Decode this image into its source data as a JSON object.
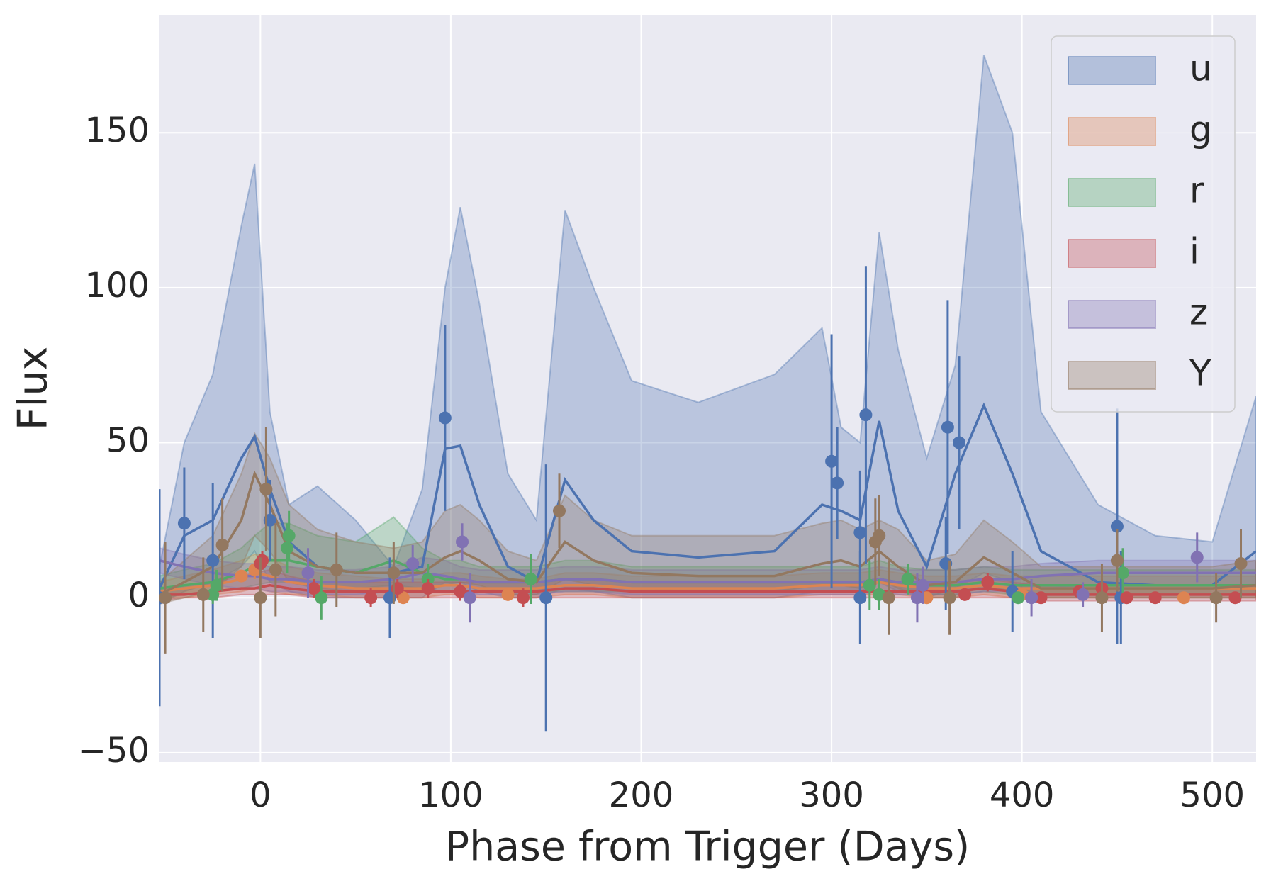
{
  "chart_data": {
    "type": "line",
    "xlabel": "Phase from Trigger (Days)",
    "ylabel": "Flux",
    "xlim": [
      -53,
      523
    ],
    "ylim": [
      -53,
      188
    ],
    "xticks": [
      0,
      100,
      200,
      300,
      400,
      500
    ],
    "yticks": [
      {
        "value": -50,
        "label": "−50"
      },
      0,
      50,
      100,
      150
    ],
    "grid": true,
    "legend": "upper right",
    "x": [
      -53,
      -40,
      -25,
      -10,
      -3,
      5,
      15,
      30,
      50,
      70,
      85,
      97,
      105,
      115,
      130,
      145,
      160,
      175,
      195,
      230,
      270,
      295,
      305,
      315,
      325,
      335,
      350,
      365,
      380,
      395,
      410,
      440,
      470,
      500,
      523
    ],
    "series": [
      {
        "name": "u",
        "color": "#4c72b0",
        "values": [
          3,
          20,
          25,
          45,
          52,
          35,
          18,
          10,
          8,
          8,
          10,
          48,
          49,
          30,
          10,
          5,
          38,
          25,
          15,
          13,
          15,
          30,
          28,
          25,
          57,
          28,
          10,
          40,
          62,
          40,
          15,
          5,
          4,
          4,
          15
        ],
        "upper": [
          10,
          50,
          72,
          120,
          140,
          60,
          30,
          36,
          25,
          10,
          35,
          100,
          126,
          95,
          40,
          25,
          125,
          100,
          70,
          63,
          72,
          87,
          55,
          50,
          118,
          80,
          45,
          75,
          175,
          150,
          60,
          30,
          20,
          18,
          65
        ],
        "lower": [
          -2,
          2,
          5,
          10,
          15,
          5,
          2,
          0,
          0,
          0,
          0,
          5,
          5,
          2,
          0,
          0,
          3,
          2,
          0,
          0,
          0,
          2,
          2,
          2,
          5,
          2,
          0,
          3,
          8,
          5,
          0,
          0,
          0,
          0,
          0
        ],
        "points": {
          "x": [
            -53,
            -40,
            -25,
            5,
            68,
            97,
            150,
            300,
            303,
            315,
            315,
            318,
            360,
            361,
            367,
            395,
            450,
            452
          ],
          "y": [
            0,
            24,
            12,
            25,
            0,
            58,
            0,
            44,
            37,
            21,
            0,
            59,
            11,
            55,
            50,
            2,
            23,
            0
          ],
          "err": [
            35,
            18,
            25,
            13,
            13,
            30,
            43,
            41,
            18,
            20,
            15,
            48,
            15,
            41,
            28,
            13,
            38,
            15
          ]
        }
      },
      {
        "name": "g",
        "color": "#dd8452",
        "values": [
          2,
          3,
          4,
          6,
          8,
          7,
          5,
          4,
          3,
          3,
          3,
          4,
          4,
          3,
          3,
          3,
          4,
          4,
          3,
          3,
          3,
          4,
          4,
          4,
          5,
          4,
          3,
          3,
          4,
          3,
          3,
          3,
          3,
          3,
          3
        ],
        "upper": [
          5,
          7,
          9,
          12,
          14,
          13,
          10,
          8,
          7,
          6,
          6,
          8,
          8,
          7,
          6,
          6,
          8,
          8,
          7,
          7,
          7,
          8,
          8,
          8,
          9,
          8,
          7,
          7,
          8,
          7,
          7,
          7,
          7,
          7,
          7
        ],
        "lower": [
          0,
          0,
          1,
          2,
          3,
          2,
          1,
          1,
          0,
          0,
          0,
          1,
          1,
          0,
          0,
          0,
          1,
          1,
          0,
          0,
          0,
          1,
          1,
          1,
          1,
          1,
          0,
          0,
          1,
          0,
          0,
          0,
          0,
          0,
          0
        ],
        "points": {
          "x": [
            -10,
            -3,
            75,
            130,
            350,
            400,
            485
          ],
          "y": [
            7,
            9,
            0,
            1,
            0,
            1,
            0
          ],
          "err": [
            2,
            3,
            2,
            2,
            2,
            2,
            2
          ]
        }
      },
      {
        "name": "r",
        "color": "#55a868",
        "values": [
          3,
          4,
          5,
          8,
          10,
          12,
          12,
          10,
          8,
          12,
          8,
          6,
          6,
          5,
          5,
          5,
          6,
          6,
          5,
          5,
          5,
          5,
          5,
          5,
          6,
          5,
          4,
          4,
          5,
          4,
          4,
          4,
          4,
          4,
          4
        ],
        "upper": [
          7,
          9,
          11,
          16,
          20,
          24,
          24,
          20,
          18,
          26,
          16,
          12,
          12,
          10,
          10,
          10,
          12,
          12,
          10,
          10,
          10,
          10,
          10,
          10,
          12,
          10,
          9,
          9,
          10,
          9,
          9,
          9,
          9,
          9,
          9
        ],
        "lower": [
          0,
          1,
          2,
          3,
          4,
          5,
          5,
          4,
          3,
          4,
          3,
          2,
          2,
          2,
          2,
          2,
          2,
          2,
          2,
          2,
          2,
          2,
          2,
          2,
          2,
          2,
          1,
          1,
          2,
          1,
          1,
          1,
          1,
          1,
          1
        ],
        "points": {
          "x": [
            -25,
            -23,
            14,
            15,
            32,
            88,
            142,
            320,
            325,
            340,
            398,
            453
          ],
          "y": [
            1,
            4,
            16,
            20,
            0,
            6,
            6,
            4,
            1,
            6,
            0,
            8
          ],
          "err": [
            3,
            5,
            8,
            8,
            7,
            5,
            8,
            8,
            5,
            5,
            2,
            8
          ]
        }
      },
      {
        "name": "i",
        "color": "#c44e52",
        "values": [
          1,
          1,
          2,
          3,
          3,
          4,
          3,
          2,
          2,
          2,
          2,
          2,
          2,
          2,
          2,
          2,
          3,
          3,
          2,
          2,
          2,
          2,
          2,
          2,
          2,
          2,
          2,
          2,
          3,
          2,
          1,
          1,
          1,
          1,
          1
        ],
        "upper": [
          3,
          4,
          5,
          7,
          8,
          9,
          7,
          5,
          5,
          5,
          5,
          5,
          5,
          5,
          5,
          5,
          6,
          6,
          5,
          5,
          5,
          5,
          5,
          5,
          5,
          5,
          5,
          5,
          6,
          5,
          4,
          4,
          4,
          4,
          4
        ],
        "lower": [
          -1,
          0,
          0,
          1,
          1,
          1,
          1,
          0,
          0,
          0,
          0,
          0,
          0,
          0,
          0,
          0,
          0,
          0,
          0,
          0,
          0,
          0,
          0,
          0,
          0,
          0,
          0,
          0,
          0,
          0,
          -1,
          -1,
          -1,
          -1,
          -1
        ],
        "points": {
          "x": [
            0,
            1,
            28,
            58,
            72,
            88,
            105,
            138,
            370,
            382,
            410,
            430,
            442,
            455,
            470,
            512
          ],
          "y": [
            11,
            12,
            3,
            0,
            3,
            3,
            2,
            0,
            1,
            5,
            0,
            2,
            3,
            0,
            0,
            0
          ],
          "err": [
            3,
            3,
            3,
            3,
            3,
            3,
            3,
            3,
            2,
            3,
            2,
            2,
            3,
            2,
            2,
            2
          ]
        }
      },
      {
        "name": "z",
        "color": "#8172b3",
        "values": [
          12,
          10,
          8,
          7,
          7,
          6,
          6,
          5,
          5,
          6,
          8,
          7,
          6,
          5,
          5,
          5,
          6,
          6,
          5,
          5,
          5,
          5,
          5,
          5,
          6,
          5,
          5,
          5,
          6,
          6,
          7,
          8,
          8,
          8,
          8
        ],
        "upper": [
          16,
          14,
          12,
          11,
          11,
          10,
          10,
          9,
          9,
          10,
          13,
          12,
          10,
          9,
          9,
          9,
          10,
          10,
          9,
          9,
          9,
          9,
          9,
          9,
          10,
          9,
          9,
          9,
          10,
          10,
          11,
          12,
          12,
          12,
          12
        ],
        "lower": [
          8,
          6,
          4,
          3,
          3,
          2,
          2,
          1,
          1,
          2,
          3,
          2,
          2,
          1,
          1,
          1,
          2,
          2,
          1,
          1,
          1,
          1,
          1,
          1,
          2,
          1,
          1,
          1,
          2,
          2,
          3,
          4,
          4,
          4,
          4
        ],
        "points": {
          "x": [
            25,
            80,
            106,
            110,
            345,
            348,
            405,
            432,
            492
          ],
          "y": [
            8,
            11,
            18,
            0,
            0,
            4,
            0,
            1,
            13
          ],
          "err": [
            8,
            6,
            6,
            8,
            8,
            6,
            6,
            4,
            8
          ]
        }
      },
      {
        "name": "Y",
        "color": "#937860",
        "values": [
          1,
          5,
          10,
          25,
          40,
          30,
          15,
          10,
          8,
          8,
          8,
          13,
          15,
          12,
          6,
          5,
          18,
          12,
          8,
          7,
          7,
          11,
          12,
          10,
          15,
          10,
          4,
          5,
          13,
          8,
          3,
          3,
          3,
          3,
          4
        ],
        "upper": [
          5,
          12,
          20,
          40,
          53,
          45,
          30,
          22,
          18,
          16,
          18,
          28,
          30,
          25,
          15,
          12,
          33,
          25,
          20,
          20,
          20,
          24,
          25,
          22,
          25,
          22,
          12,
          14,
          25,
          18,
          10,
          10,
          10,
          10,
          12
        ],
        "lower": [
          -2,
          0,
          2,
          10,
          20,
          15,
          5,
          3,
          2,
          2,
          2,
          4,
          5,
          4,
          1,
          1,
          6,
          4,
          3,
          2,
          2,
          4,
          4,
          3,
          6,
          3,
          0,
          0,
          4,
          2,
          0,
          0,
          0,
          0,
          0
        ],
        "points": {
          "x": [
            -50,
            -30,
            -20,
            0,
            3,
            8,
            40,
            70,
            157,
            323,
            325,
            330,
            362,
            442,
            450,
            502,
            515
          ],
          "y": [
            0,
            1,
            17,
            0,
            35,
            9,
            9,
            8,
            28,
            18,
            20,
            0,
            0,
            0,
            12,
            0,
            11
          ],
          "err": [
            18,
            12,
            15,
            13,
            20,
            15,
            12,
            10,
            12,
            14,
            13,
            12,
            12,
            11,
            10,
            8,
            11
          ]
        }
      }
    ]
  }
}
